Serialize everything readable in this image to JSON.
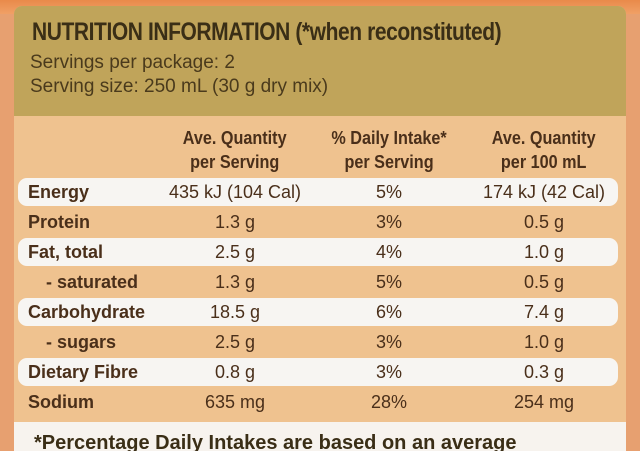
{
  "title": "NUTRITION INFORMATION (*when reconstituted)",
  "servings_per_package": "Servings per package: 2",
  "serving_size": "Serving size: 250 mL (30 g dry mix)",
  "columns": [
    {
      "line1": "Ave. Quantity",
      "line2": "per Serving"
    },
    {
      "line1": "% Daily Intake*",
      "line2": "per Serving"
    },
    {
      "line1": "Ave. Quantity",
      "line2": "per 100 mL"
    }
  ],
  "rows": [
    {
      "label": "Energy",
      "per_serving": "435 kJ (104 Cal)",
      "daily_intake": "5%",
      "per_100ml": "174 kJ (42 Cal)"
    },
    {
      "label": "Protein",
      "per_serving": "1.3 g",
      "daily_intake": "3%",
      "per_100ml": "0.5 g"
    },
    {
      "label": "Fat, total",
      "per_serving": "2.5 g",
      "daily_intake": "4%",
      "per_100ml": "1.0 g"
    },
    {
      "label": "- saturated",
      "per_serving": "1.3 g",
      "daily_intake": "5%",
      "per_100ml": "0.5 g"
    },
    {
      "label": "Carbohydrate",
      "per_serving": "18.5 g",
      "daily_intake": "6%",
      "per_100ml": "7.4 g"
    },
    {
      "label": "- sugars",
      "per_serving": "2.5 g",
      "daily_intake": "3%",
      "per_100ml": "1.0 g"
    },
    {
      "label": "Dietary Fibre",
      "per_serving": "0.8 g",
      "daily_intake": "3%",
      "per_100ml": "0.3 g"
    },
    {
      "label": "Sodium",
      "per_serving": "635 mg",
      "daily_intake": "28%",
      "per_100ml": "254 mg"
    }
  ],
  "footnote": "*Percentage Daily Intakes are based on an average"
}
